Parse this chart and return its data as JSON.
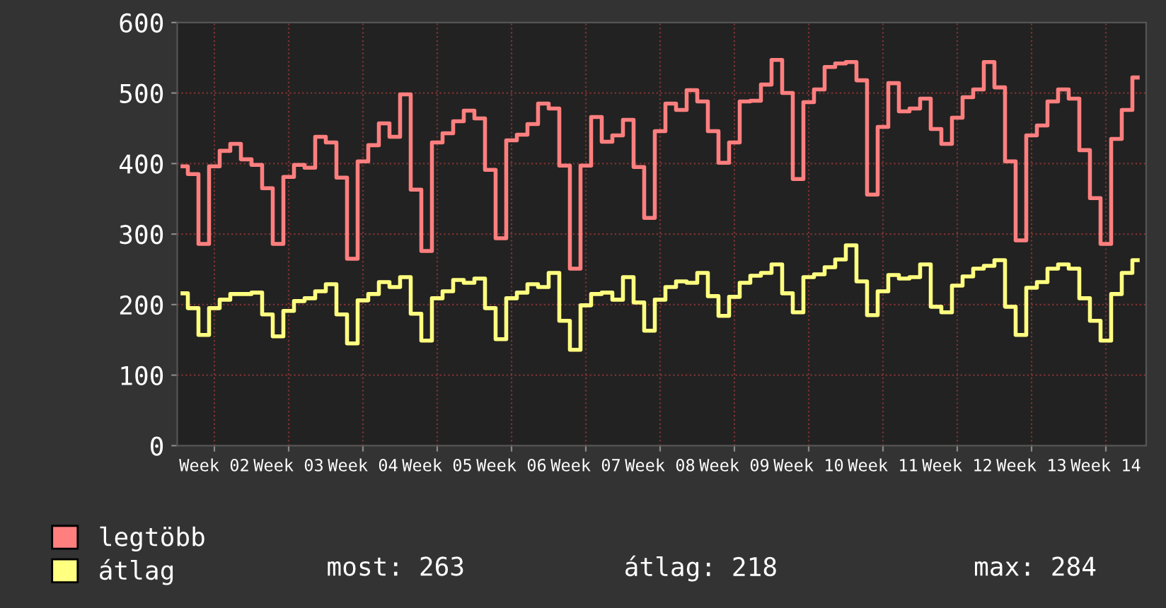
{
  "chart_data": {
    "type": "step",
    "categories": [
      null,
      null,
      null,
      "Week 02",
      null,
      null,
      null,
      null,
      null,
      null,
      "Week 03",
      null,
      null,
      null,
      null,
      null,
      null,
      "Week 04",
      null,
      null,
      null,
      null,
      null,
      null,
      "Week 05",
      null,
      null,
      null,
      null,
      null,
      null,
      "Week 06",
      null,
      null,
      null,
      null,
      null,
      null,
      "Week 07",
      null,
      null,
      null,
      null,
      null,
      null,
      "Week 08",
      null,
      null,
      null,
      null,
      null,
      null,
      "Week 09",
      null,
      null,
      null,
      null,
      null,
      null,
      "Week 10",
      null,
      null,
      null,
      null,
      null,
      null,
      "Week 11",
      null,
      null,
      null,
      null,
      null,
      null,
      "Week 12",
      null,
      null,
      null,
      null,
      null,
      null,
      "Week 13",
      null,
      null,
      null,
      null,
      null,
      null,
      "Week 14",
      null,
      null,
      null
    ],
    "series": [
      {
        "name": "legtöbb",
        "color": "#ff7f7f",
        "values": [
          396,
          385,
          286,
          396,
          418,
          428,
          406,
          398,
          365,
          286,
          381,
          398,
          394,
          438,
          430,
          380,
          265,
          403,
          426,
          457,
          438,
          498,
          363,
          276,
          430,
          443,
          460,
          475,
          464,
          391,
          294,
          433,
          441,
          456,
          485,
          478,
          397,
          251,
          397,
          466,
          431,
          440,
          462,
          395,
          323,
          446,
          485,
          476,
          504,
          488,
          446,
          401,
          430,
          488,
          489,
          512,
          547,
          500,
          378,
          487,
          505,
          537,
          542,
          544,
          518,
          356,
          452,
          514,
          474,
          478,
          492,
          449,
          428,
          465,
          494,
          505,
          544,
          508,
          403,
          291,
          440,
          454,
          488,
          505,
          492,
          419,
          351,
          286,
          435,
          476,
          522
        ]
      },
      {
        "name": "átlag",
        "color": "#ffff80",
        "values": [
          216,
          195,
          157,
          195,
          207,
          215,
          215,
          217,
          186,
          155,
          191,
          205,
          209,
          219,
          229,
          186,
          145,
          206,
          215,
          232,
          225,
          239,
          187,
          149,
          209,
          219,
          235,
          231,
          237,
          195,
          151,
          209,
          217,
          229,
          225,
          245,
          177,
          136,
          199,
          215,
          217,
          207,
          239,
          203,
          163,
          207,
          225,
          233,
          231,
          245,
          212,
          184,
          211,
          231,
          241,
          245,
          257,
          216,
          189,
          239,
          243,
          253,
          264,
          284,
          233,
          185,
          219,
          242,
          237,
          239,
          257,
          197,
          189,
          227,
          240,
          251,
          255,
          263,
          197,
          157,
          224,
          232,
          251,
          257,
          251,
          209,
          177,
          149,
          215,
          245,
          263
        ]
      }
    ],
    "ylim": [
      0,
      600
    ],
    "yticks": [
      0,
      100,
      200,
      300,
      400,
      500,
      600
    ],
    "grid": true,
    "legend": "bottom",
    "annotations": [
      "most: 263",
      "átlag: 218",
      "max: 284"
    ]
  }
}
